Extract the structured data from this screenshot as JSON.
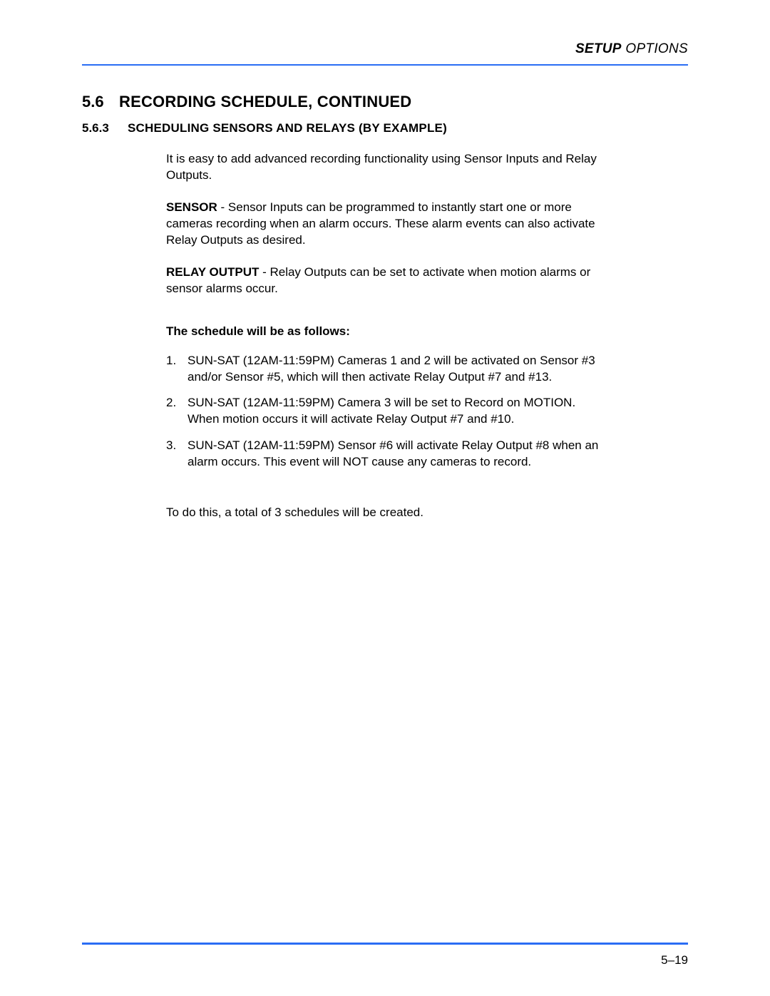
{
  "colors": {
    "rule": "#2a6df4",
    "text": "#000000",
    "background": "#ffffff"
  },
  "header": {
    "bold_part": "SETUP",
    "normal_part": " OPTIONS"
  },
  "section": {
    "number": "5.6",
    "title": "RECORDING SCHEDULE, CONTINUED"
  },
  "subsection": {
    "number": "5.6.3",
    "title": "SCHEDULING SENSORS AND RELAYS (BY EXAMPLE)"
  },
  "intro_para": "It is easy to add advanced recording functionality using Sensor Inputs and Relay Outputs.",
  "sensor_para": {
    "lead": "SENSOR",
    "rest": " - Sensor Inputs can be programmed to instantly start one or more cameras recording when an alarm occurs. These alarm events can also activate Relay Outputs as desired."
  },
  "relay_para": {
    "lead": "RELAY OUTPUT",
    "rest": " - Relay Outputs can be set to activate when motion alarms or sensor alarms occur."
  },
  "schedule_heading": "The schedule will be as follows:",
  "schedule_items": [
    "SUN-SAT (12AM-11:59PM) Cameras 1 and 2 will be activated on Sensor #3 and/or Sensor #5, which will then activate Relay Output #7 and #13.",
    "SUN-SAT (12AM-11:59PM) Camera 3 will be set to Record on MOTION. When motion occurs it will activate Relay Output #7 and #10.",
    "SUN-SAT (12AM-11:59PM) Sensor #6 will activate Relay Output #8 when an alarm occurs. This event will NOT cause any cameras to record."
  ],
  "closing_para": "To do this, a total of 3 schedules will be created.",
  "page_number": "5–19"
}
